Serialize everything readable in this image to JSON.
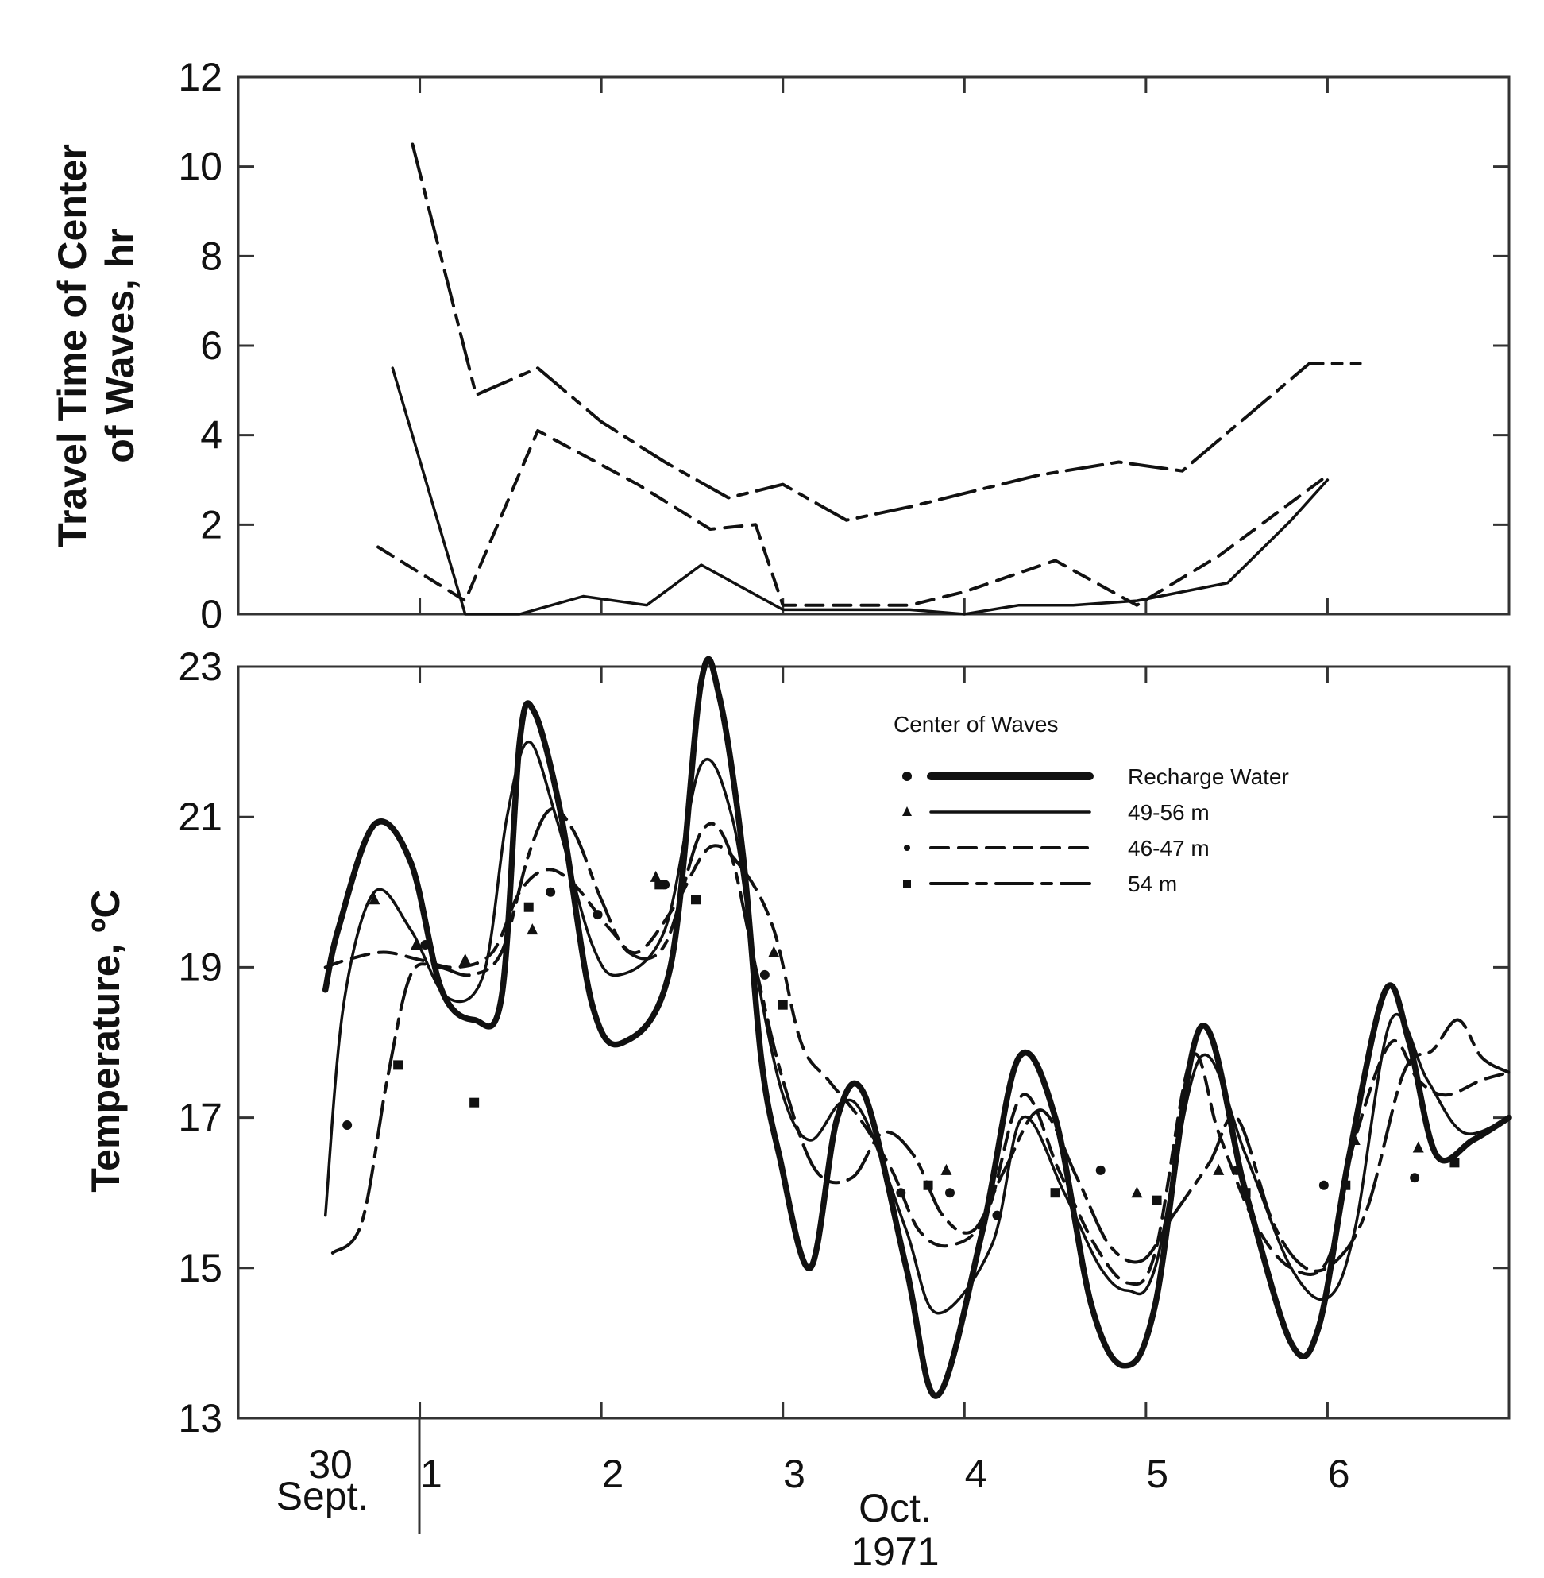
{
  "chart_data": [
    {
      "type": "line",
      "id": "travel-time",
      "ylabel_lines": [
        "Travel Time of Center",
        "of Waves, hr"
      ],
      "xlim": [
        0,
        7
      ],
      "ylim": [
        0,
        12
      ],
      "yticks": [
        0,
        2,
        4,
        6,
        8,
        10,
        12
      ],
      "xtick_positions": [
        1,
        2,
        3,
        4,
        5,
        6
      ],
      "grid": false,
      "series": [
        {
          "key": "longdash",
          "style": "long-dash",
          "x": [
            0.96,
            1.31,
            1.65,
            2.0,
            2.35,
            2.7,
            3.0,
            3.35,
            3.7,
            4.0,
            4.4,
            4.85,
            5.2,
            5.55,
            5.9,
            6.18
          ],
          "y": [
            10.5,
            4.9,
            5.5,
            4.3,
            3.4,
            2.6,
            2.9,
            2.1,
            2.4,
            2.7,
            3.1,
            3.4,
            3.2,
            4.4,
            5.6,
            5.6
          ]
        },
        {
          "key": "shortdash",
          "style": "short-dash",
          "x": [
            0.77,
            1.25,
            1.65,
            2.2,
            2.6,
            2.85,
            3.0,
            3.4,
            3.7,
            4.0,
            4.5,
            4.95,
            5.4,
            5.8,
            6.0
          ],
          "y": [
            1.5,
            0.3,
            4.1,
            2.9,
            1.9,
            2.0,
            0.2,
            0.2,
            0.2,
            0.5,
            1.2,
            0.2,
            1.3,
            2.5,
            3.1
          ]
        },
        {
          "key": "solid",
          "style": "solid",
          "x": [
            0.85,
            1.25,
            1.55,
            1.9,
            2.25,
            2.55,
            3.0,
            3.4,
            3.7,
            4.0,
            4.3,
            4.6,
            4.95,
            5.45,
            5.8,
            6.0
          ],
          "y": [
            5.5,
            0.0,
            0.0,
            0.4,
            0.2,
            1.1,
            0.1,
            0.1,
            0.1,
            0.0,
            0.2,
            0.2,
            0.3,
            0.7,
            2.1,
            3.0
          ]
        }
      ]
    },
    {
      "type": "line",
      "id": "temperature",
      "ylabel": "Temperature, ºC",
      "xlim": [
        0,
        7
      ],
      "ylim": [
        13,
        23
      ],
      "yticks": [
        13,
        15,
        17,
        19,
        21,
        23
      ],
      "xtick_positions": [
        1,
        2,
        3,
        4,
        5,
        6
      ],
      "grid": false,
      "legend": {
        "placement": "top-right",
        "title": "Center of Waves",
        "entries": [
          "Recharge Water",
          "49-56 m",
          "46-47 m",
          "54 m"
        ]
      },
      "series": [
        {
          "key": "recharge",
          "name": "Recharge Water",
          "style": "heavy",
          "x": [
            0.48,
            0.55,
            0.75,
            0.95,
            1.12,
            1.3,
            1.45,
            1.55,
            1.63,
            1.78,
            1.95,
            2.12,
            2.38,
            2.55,
            2.65,
            2.78,
            2.88,
            2.98,
            3.15,
            3.3,
            3.45,
            3.68,
            3.85,
            4.1,
            4.3,
            4.5,
            4.7,
            4.88,
            5.05,
            5.3,
            5.55,
            5.8,
            5.95,
            6.12,
            6.32,
            6.45,
            6.6,
            6.8,
            7.0
          ],
          "y": [
            18.7,
            19.5,
            20.9,
            20.4,
            18.7,
            18.3,
            18.6,
            22.0,
            22.4,
            21.0,
            18.5,
            18.0,
            19.0,
            22.8,
            22.6,
            20.5,
            17.8,
            16.5,
            15.0,
            17.0,
            17.3,
            15.0,
            13.3,
            15.5,
            17.8,
            17.0,
            14.5,
            13.7,
            14.5,
            18.2,
            16.0,
            14.0,
            14.2,
            16.5,
            18.7,
            18.0,
            16.5,
            16.7,
            17.0
          ]
        },
        {
          "key": "m4956",
          "name": "49-56 m",
          "style": "solid",
          "x": [
            0.48,
            0.58,
            0.75,
            0.95,
            1.15,
            1.35,
            1.48,
            1.6,
            1.75,
            1.95,
            2.1,
            2.35,
            2.55,
            2.72,
            2.85,
            3.0,
            3.15,
            3.32,
            3.45,
            3.68,
            3.85,
            4.15,
            4.32,
            4.55,
            4.75,
            4.9,
            5.05,
            5.3,
            5.55,
            5.8,
            6.0,
            6.15,
            6.35,
            6.55,
            6.75,
            7.0
          ],
          "y": [
            15.7,
            18.5,
            20.0,
            19.5,
            18.6,
            18.9,
            21.0,
            22.0,
            21.0,
            19.3,
            18.9,
            19.5,
            21.7,
            21.0,
            19.0,
            17.3,
            16.7,
            17.2,
            17.0,
            15.5,
            14.4,
            15.3,
            17.0,
            16.0,
            15.0,
            14.7,
            15.0,
            17.8,
            16.5,
            15.0,
            14.6,
            15.5,
            18.3,
            17.5,
            16.8,
            17.0
          ]
        },
        {
          "key": "m4647",
          "name": "46-47 m",
          "style": "short-dash",
          "x": [
            0.48,
            0.6,
            0.8,
            1.0,
            1.2,
            1.4,
            1.55,
            1.7,
            1.85,
            2.05,
            2.2,
            2.4,
            2.6,
            2.78,
            2.95,
            3.1,
            3.25,
            3.42,
            3.6,
            3.75,
            3.92,
            4.12,
            4.32,
            4.52,
            4.72,
            4.9,
            5.05,
            5.25,
            5.4,
            5.6,
            5.8,
            6.0,
            6.15,
            6.35,
            6.5,
            6.65,
            6.85,
            7.0
          ],
          "y": [
            19.0,
            19.1,
            19.2,
            19.1,
            19.0,
            19.2,
            20.0,
            20.3,
            20.1,
            19.5,
            19.2,
            19.8,
            20.6,
            20.3,
            19.5,
            18.0,
            17.5,
            17.0,
            16.3,
            15.5,
            15.3,
            15.7,
            17.3,
            16.3,
            15.3,
            14.8,
            15.2,
            17.8,
            16.8,
            15.6,
            15.0,
            15.1,
            16.7,
            18.0,
            17.5,
            17.3,
            17.5,
            17.6
          ]
        },
        {
          "key": "m54",
          "name": "54 m",
          "style": "long-dash",
          "x": [
            0.52,
            0.68,
            0.82,
            0.95,
            1.1,
            1.28,
            1.45,
            1.6,
            1.72,
            1.85,
            2.0,
            2.15,
            2.35,
            2.55,
            2.7,
            2.85,
            3.0,
            3.18,
            3.38,
            3.55,
            3.72,
            3.88,
            4.05,
            4.22,
            4.42,
            4.62,
            4.8,
            4.98,
            5.15,
            5.35,
            5.5,
            5.7,
            5.88,
            6.05,
            6.22,
            6.42,
            6.58,
            6.72,
            6.85,
            7.0
          ],
          "y": [
            15.2,
            15.6,
            17.5,
            18.9,
            19.0,
            18.9,
            19.2,
            20.5,
            21.1,
            20.8,
            19.9,
            19.2,
            19.3,
            20.8,
            20.6,
            19.0,
            17.5,
            16.3,
            16.2,
            16.8,
            16.5,
            15.7,
            15.5,
            16.3,
            17.1,
            16.2,
            15.3,
            15.1,
            15.7,
            16.4,
            17.0,
            15.6,
            15.0,
            15.1,
            15.8,
            17.6,
            17.9,
            18.3,
            17.8,
            17.6
          ]
        }
      ],
      "scatter": [
        {
          "marker": "triangle",
          "x": [
            0.75,
            0.98,
            1.25,
            1.62,
            2.3,
            2.95,
            3.9,
            4.95,
            5.4,
            6.15,
            6.5
          ],
          "y": [
            19.9,
            19.3,
            19.1,
            19.5,
            20.2,
            19.2,
            16.3,
            16.0,
            16.3,
            16.7,
            16.6
          ]
        },
        {
          "marker": "circle",
          "x": [
            0.6,
            1.03,
            1.72,
            1.98,
            2.35,
            2.9,
            3.65,
            3.92,
            4.18,
            4.75,
            5.5,
            5.98,
            6.48
          ],
          "y": [
            16.9,
            19.3,
            20.0,
            19.7,
            20.1,
            18.9,
            16.0,
            16.0,
            15.7,
            16.3,
            16.3,
            16.1,
            16.2
          ]
        },
        {
          "marker": "square",
          "x": [
            0.88,
            1.3,
            1.6,
            2.32,
            2.52,
            3.0,
            3.8,
            4.5,
            5.06,
            5.55,
            6.1,
            6.7
          ],
          "y": [
            17.7,
            17.2,
            19.8,
            20.1,
            19.9,
            18.5,
            16.1,
            16.0,
            15.9,
            16.0,
            16.1,
            16.4
          ]
        }
      ]
    }
  ],
  "x_axis": {
    "sept_day": "30",
    "sept_month": "Sept.",
    "oct_days": [
      {
        "label": "1",
        "x": 1.5
      },
      {
        "label": "2",
        "x": 2.5
      },
      {
        "label": "3",
        "x": 3.5
      },
      {
        "label": "4",
        "x": 4.5
      },
      {
        "label": "5",
        "x": 5.5
      },
      {
        "label": "6",
        "x": 6.5
      }
    ],
    "oct_month": "Oct.",
    "year": "1971"
  },
  "colors": {
    "line": "#111111",
    "axis": "#333333"
  }
}
